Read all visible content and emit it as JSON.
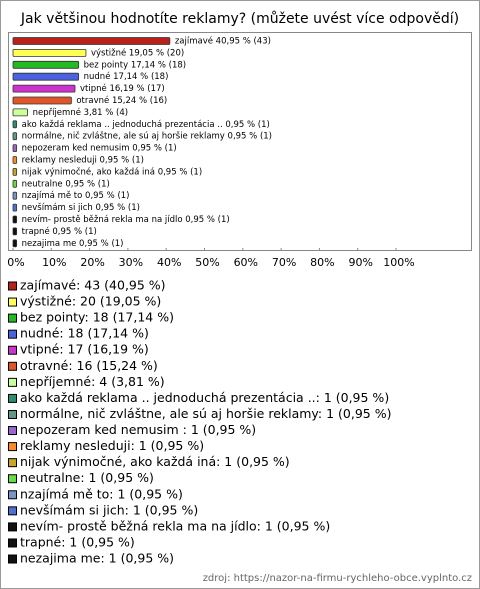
{
  "chart_data": {
    "type": "hbar",
    "title": "Jak většinou hodnotíte reklamy? (můžete uvést více odpovědí)",
    "values": [
      40.95,
      19.05,
      17.14,
      17.14,
      16.19,
      15.24,
      3.81,
      0.95,
      0.95,
      0.95,
      0.95,
      0.95,
      0.95,
      0.95,
      0.95,
      0.95,
      0.95,
      0.95
    ],
    "value_labels": [
      "zajímavé 40,95 % (43)",
      "výstižné 19,05 % (20)",
      "bez pointy 17,14 % (18)",
      "nudné 17,14 % (18)",
      "vtipné 16,19 % (17)",
      "otravné 15,24 % (16)",
      "nepříjemné 3,81 % (4)",
      "ako každá reklama .. jednoduchá prezentácia .. 0,95 % (1)",
      "normálne, nič zvláštne, ale sú aj horšie reklamy 0,95 % (1)",
      "nepozeram ked nemusim  0,95 % (1)",
      "reklamy nesleduji 0,95 % (1)",
      "nijak výnimočné, ako každá iná 0,95 % (1)",
      "neutralne 0,95 % (1)",
      "nzajímá mě to 0,95 % (1)",
      "nevšímám si jich 0,95 % (1)",
      "nevím- prostě běžná rekla ma na jídlo 0,95 % (1)",
      "trapné 0,95 % (1)",
      "nezajima me 0,95 % (1)"
    ],
    "legend_labels": [
      "zajímavé: 43 (40,95 %)",
      "výstižné: 20 (19,05 %)",
      "bez pointy: 18 (17,14 %)",
      "nudné: 18 (17,14 %)",
      "vtipné: 17 (16,19 %)",
      "otravné: 16 (15,24 %)",
      "nepříjemné: 4 (3,81 %)",
      "ako každá reklama .. jednoduchá prezentácia ..: 1 (0,95 %)",
      "normálne, nič zvláštne, ale sú aj horšie reklamy: 1 (0,95 %)",
      "nepozeram ked nemusim : 1 (0,95 %)",
      "reklamy nesleduji: 1 (0,95 %)",
      "nijak výnimočné, ako každá iná: 1 (0,95 %)",
      "neutralne: 1 (0,95 %)",
      "nzajímá mě to: 1 (0,95 %)",
      "nevšímám si jich: 1 (0,95 %)",
      "nevím- prostě běžná rekla ma na jídlo: 1 (0,95 %)",
      "trapné: 1 (0,95 %)",
      "nezajima me: 1 (0,95 %)"
    ],
    "colors": [
      "#b8221c",
      "#ffff55",
      "#22bb22",
      "#4a62e0",
      "#cc33cc",
      "#e0542a",
      "#ccff99",
      "#2a8f6a",
      "#5f9a88",
      "#9a66cc",
      "#ff8a22",
      "#c9a622",
      "#66dd44",
      "#7a94c8",
      "#5070d0",
      "#111111",
      "#111111",
      "#111111"
    ],
    "xlim": [
      0,
      100
    ],
    "xticks": [
      {
        "value": 0,
        "label": "0%"
      },
      {
        "value": 10,
        "label": "10%"
      },
      {
        "value": 20,
        "label": "20%"
      },
      {
        "value": 30,
        "label": "30%"
      },
      {
        "value": 40,
        "label": "40%"
      },
      {
        "value": 50,
        "label": "50%"
      },
      {
        "value": 60,
        "label": "60%"
      },
      {
        "value": 70,
        "label": "70%"
      },
      {
        "value": 80,
        "label": "80%"
      },
      {
        "value": 90,
        "label": "90%"
      },
      {
        "value": 100,
        "label": "100%"
      }
    ],
    "source": "zdroj: https://nazor-na-firmu-rychleho-obce.vyplnto.cz"
  }
}
